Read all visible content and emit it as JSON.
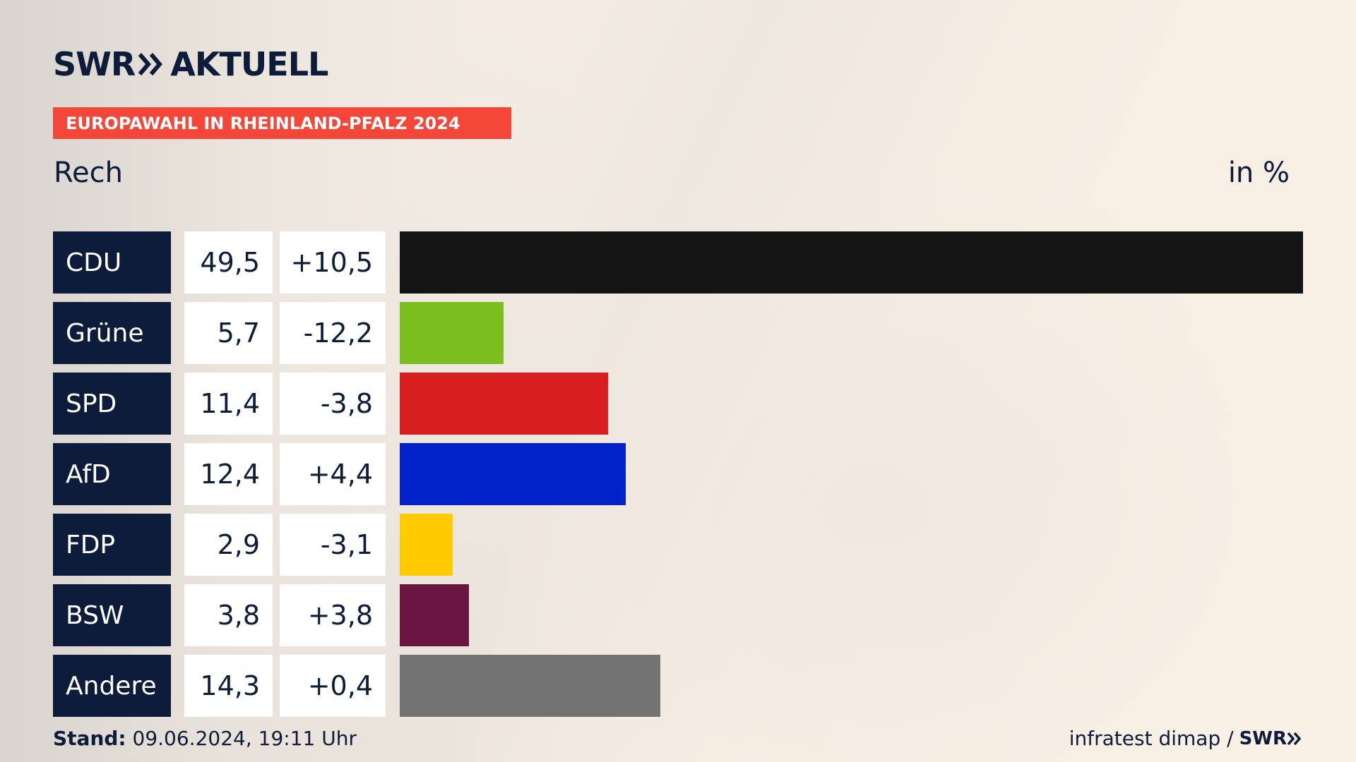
{
  "brand": {
    "name": "SWR",
    "section": "AKTUELL"
  },
  "banner": "EUROPAWAHL IN RHEINLAND-PFALZ 2024",
  "subtitle": "Rech",
  "unit_label": "in %",
  "footer": {
    "stand_label": "Stand:",
    "stand_value": "09.06.2024, 19:11 Uhr",
    "source": "infratest dimap /",
    "source_brand": "SWR"
  },
  "chart_data": {
    "type": "bar",
    "orientation": "horizontal",
    "title": "EUROPAWAHL IN RHEINLAND-PFALZ 2024",
    "subtitle": "Rech",
    "unit": "in %",
    "xlim": [
      0,
      49.5
    ],
    "categories": [
      "CDU",
      "Grüne",
      "SPD",
      "AfD",
      "FDP",
      "BSW",
      "Andere"
    ],
    "values": [
      49.5,
      5.7,
      11.4,
      12.4,
      2.9,
      3.8,
      14.3
    ],
    "value_labels": [
      "49,5",
      "5,7",
      "11,4",
      "12,4",
      "2,9",
      "3,8",
      "14,3"
    ],
    "change_labels": [
      "+10,5",
      "-12,2",
      "-3,8",
      "+4,4",
      "-3,1",
      "+3,8",
      "+0,4"
    ],
    "changes": [
      10.5,
      -12.2,
      -3.8,
      4.4,
      -3.1,
      3.8,
      0.4
    ],
    "colors": [
      "#141414",
      "#7bbf1e",
      "#d81e1e",
      "#0022c8",
      "#ffcc00",
      "#6b1640",
      "#737373"
    ]
  }
}
